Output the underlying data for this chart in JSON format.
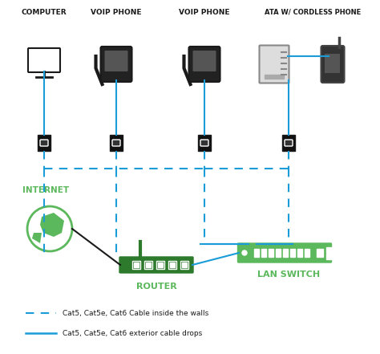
{
  "bg_color": "#ffffff",
  "title_color": "#1a1a1a",
  "green_color": "#5cb85c",
  "dark_green": "#2d7a2d",
  "blue_solid": "#1a9cd8",
  "blue_dashed": "#1a9cd8",
  "black": "#1a1a1a",
  "labels": {
    "computer": "COMPUTER",
    "voip1": "VOIP PHONE",
    "voip2": "VOIP PHONE",
    "ata": "ATA W/ CORDLESS PHONE",
    "internet": "INTERNET",
    "router": "ROUTER",
    "lan": "LAN SWITCH"
  },
  "legend": {
    "dashed": "Cat5, Cat5e, Cat6 Cable inside the walls",
    "solid": "Cat5, Cat5e, Cat6 exterior cable drops"
  },
  "label_fontsize": 6.5,
  "ata_label_fontsize": 6.0
}
